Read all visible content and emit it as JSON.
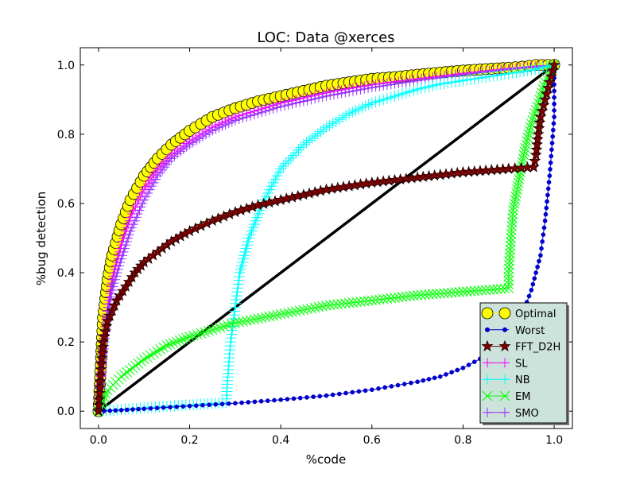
{
  "chart_data": {
    "type": "line",
    "title": "LOC: Data @xerces",
    "xlabel": "%code",
    "ylabel": "%bug detection",
    "xlim": [
      -0.04,
      1.04
    ],
    "ylim": [
      -0.05,
      1.05
    ],
    "xticks": [
      0.0,
      0.2,
      0.4,
      0.6,
      0.8,
      1.0
    ],
    "yticks": [
      0.0,
      0.2,
      0.4,
      0.6,
      0.8,
      1.0
    ],
    "xtick_labels": [
      "0.0",
      "0.2",
      "0.4",
      "0.6",
      "0.8",
      "1.0"
    ],
    "ytick_labels": [
      "0.0",
      "0.2",
      "0.4",
      "0.6",
      "0.8",
      "1.0"
    ],
    "grid": false,
    "legend_position": "bottom-right",
    "reference_line": {
      "x": [
        0,
        1
      ],
      "y": [
        0,
        1
      ],
      "color": "#000000"
    },
    "series": [
      {
        "name": "Optimal",
        "color": "#ffff00",
        "edge": "#000000",
        "marker": "circle",
        "x": [
          0.0,
          0.01,
          0.02,
          0.03,
          0.05,
          0.07,
          0.1,
          0.13,
          0.16,
          0.2,
          0.25,
          0.3,
          0.35,
          0.4,
          0.45,
          0.5,
          0.55,
          0.6,
          0.65,
          0.7,
          0.75,
          0.8,
          0.85,
          0.9,
          0.93,
          0.96,
          1.0
        ],
        "y": [
          0.0,
          0.27,
          0.38,
          0.45,
          0.54,
          0.61,
          0.68,
          0.73,
          0.77,
          0.81,
          0.85,
          0.875,
          0.895,
          0.91,
          0.925,
          0.94,
          0.95,
          0.96,
          0.965,
          0.972,
          0.978,
          0.984,
          0.988,
          0.992,
          0.995,
          1.0,
          1.0
        ]
      },
      {
        "name": "Worst",
        "color": "#0000cc",
        "edge": "#0000cc",
        "marker": "dot",
        "x": [
          0.0,
          0.05,
          0.1,
          0.2,
          0.3,
          0.4,
          0.5,
          0.6,
          0.7,
          0.75,
          0.8,
          0.85,
          0.9,
          0.93,
          0.95,
          0.97,
          0.98,
          0.99,
          1.0,
          1.0
        ],
        "y": [
          0.0,
          0.003,
          0.007,
          0.015,
          0.023,
          0.033,
          0.045,
          0.062,
          0.085,
          0.1,
          0.125,
          0.16,
          0.22,
          0.28,
          0.35,
          0.45,
          0.55,
          0.68,
          0.85,
          1.0
        ]
      },
      {
        "name": "FFT_D2H",
        "color": "#800000",
        "edge": "#000000",
        "marker": "star",
        "x": [
          0.0,
          0.005,
          0.01,
          0.02,
          0.04,
          0.06,
          0.08,
          0.1,
          0.13,
          0.16,
          0.2,
          0.25,
          0.3,
          0.35,
          0.4,
          0.45,
          0.5,
          0.6,
          0.7,
          0.8,
          0.9,
          0.955,
          0.96,
          0.965,
          0.97,
          0.98,
          0.99,
          1.0
        ],
        "y": [
          0.0,
          0.12,
          0.2,
          0.26,
          0.32,
          0.36,
          0.4,
          0.43,
          0.46,
          0.49,
          0.52,
          0.55,
          0.575,
          0.595,
          0.61,
          0.625,
          0.64,
          0.66,
          0.675,
          0.69,
          0.7,
          0.705,
          0.74,
          0.8,
          0.85,
          0.9,
          0.95,
          1.0
        ]
      },
      {
        "name": "SL",
        "color": "#ff00ff",
        "edge": "#ff00ff",
        "marker": "plus",
        "x": [
          0.0,
          0.005,
          0.01,
          0.02,
          0.03,
          0.05,
          0.07,
          0.1,
          0.13,
          0.16,
          0.2,
          0.25,
          0.3,
          0.35,
          0.4,
          0.45,
          0.5,
          0.55,
          0.6,
          0.65,
          0.7,
          0.75,
          0.8,
          0.85,
          0.9,
          0.95,
          1.0
        ],
        "y": [
          0.0,
          0.1,
          0.2,
          0.3,
          0.38,
          0.48,
          0.56,
          0.64,
          0.7,
          0.74,
          0.78,
          0.82,
          0.85,
          0.87,
          0.89,
          0.905,
          0.92,
          0.932,
          0.943,
          0.952,
          0.96,
          0.968,
          0.976,
          0.983,
          0.99,
          0.996,
          1.0
        ]
      },
      {
        "name": "NB",
        "color": "#00ffff",
        "edge": "#00ffff",
        "marker": "plus",
        "x": [
          0.0,
          0.05,
          0.1,
          0.2,
          0.28,
          0.285,
          0.29,
          0.3,
          0.31,
          0.33,
          0.36,
          0.4,
          0.45,
          0.5,
          0.55,
          0.6,
          0.65,
          0.7,
          0.75,
          0.8,
          0.85,
          0.9,
          0.95,
          1.0
        ],
        "y": [
          0.0,
          0.005,
          0.01,
          0.018,
          0.025,
          0.12,
          0.2,
          0.3,
          0.4,
          0.5,
          0.6,
          0.7,
          0.77,
          0.82,
          0.86,
          0.89,
          0.91,
          0.93,
          0.945,
          0.955,
          0.965,
          0.975,
          0.985,
          1.0
        ]
      },
      {
        "name": "EM",
        "color": "#00ff00",
        "edge": "#00ff00",
        "marker": "x",
        "x": [
          0.0,
          0.02,
          0.05,
          0.1,
          0.15,
          0.2,
          0.25,
          0.3,
          0.4,
          0.5,
          0.6,
          0.7,
          0.8,
          0.9,
          0.9,
          0.905,
          0.91,
          0.92,
          0.93,
          0.94,
          0.95,
          0.96,
          0.97,
          0.98,
          1.0
        ],
        "y": [
          0.0,
          0.06,
          0.1,
          0.15,
          0.19,
          0.215,
          0.235,
          0.255,
          0.28,
          0.305,
          0.32,
          0.335,
          0.345,
          0.355,
          0.4,
          0.5,
          0.58,
          0.65,
          0.72,
          0.78,
          0.83,
          0.87,
          0.91,
          0.95,
          1.0
        ]
      },
      {
        "name": "SMO",
        "color": "#9933ff",
        "edge": "#9933ff",
        "marker": "plus",
        "x": [
          0.0,
          0.005,
          0.01,
          0.015,
          0.02,
          0.03,
          0.05,
          0.07,
          0.1,
          0.13,
          0.16,
          0.2,
          0.25,
          0.3,
          0.35,
          0.4,
          0.45,
          0.5,
          0.6,
          0.7,
          0.8,
          0.9,
          0.95,
          1.0
        ],
        "y": [
          0.0,
          0.08,
          0.16,
          0.22,
          0.28,
          0.35,
          0.44,
          0.52,
          0.61,
          0.68,
          0.73,
          0.77,
          0.81,
          0.84,
          0.86,
          0.88,
          0.895,
          0.91,
          0.935,
          0.955,
          0.972,
          0.987,
          0.993,
          1.0
        ]
      }
    ]
  }
}
